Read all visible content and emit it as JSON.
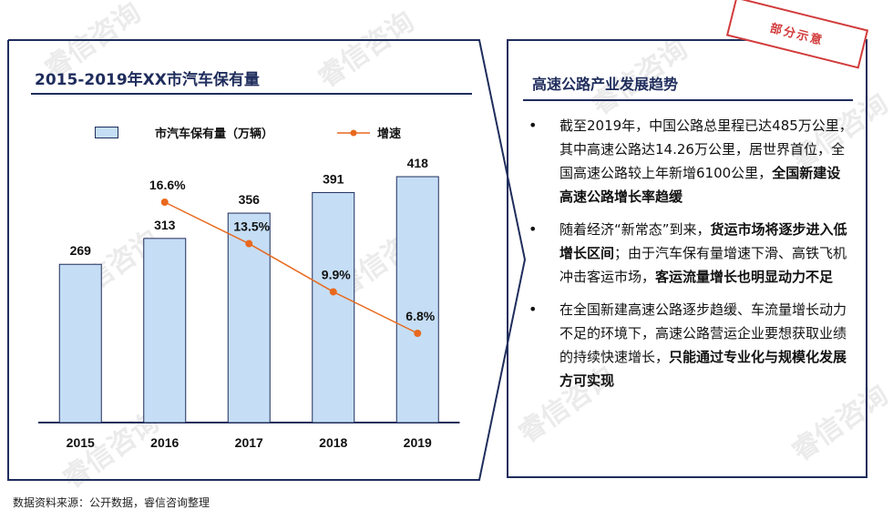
{
  "chart_title": "2015-2019年XX市汽车保有量",
  "legend": {
    "bar": "市汽车保有量（万辆）",
    "line": "增速"
  },
  "chart_data": {
    "type": "bar",
    "title": "2015-2019年XX市汽车保有量",
    "categories": [
      "2015",
      "2016",
      "2017",
      "2018",
      "2019"
    ],
    "series": [
      {
        "name": "市汽车保有量（万辆）",
        "type": "bar",
        "values": [
          269,
          313,
          356,
          391,
          418
        ],
        "labels": [
          "269",
          "313",
          "356",
          "391",
          "418"
        ]
      },
      {
        "name": "增速",
        "type": "line",
        "x": [
          "2016",
          "2017",
          "2018",
          "2019"
        ],
        "values": [
          16.6,
          13.5,
          9.9,
          6.8
        ],
        "labels": [
          "16.6%",
          "13.5%",
          "9.9%",
          "6.8%"
        ]
      }
    ],
    "colors": {
      "bar": "#c5def5",
      "bar_border": "#1f2d5c",
      "line": "#e8691e"
    }
  },
  "right": {
    "title": "高速公路产业发展趋势",
    "bullets": [
      {
        "text": "截至2019年，中国公路总里程已达485万公里，其中高速公路达14.26万公里，居世界首位，全国高速公路较上年新增6100公里，",
        "bold": "全国新建设高速公路增长率趋缓"
      },
      {
        "text": "随着经济“新常态”到来，",
        "bold": "货运市场将逐步进入低增长区间",
        "text2": "；由于汽车保有量增速下滑、高铁飞机冲击客运市场，",
        "bold2": "客运流量增长也明显动力不足"
      },
      {
        "text": "在全国新建高速公路逐步趋缓、车流量增长动力不足的环境下，高速公路营运企业要想获取业绩的持续快速增长，",
        "bold": "只能通过专业化与规模化发展方可实现"
      }
    ]
  },
  "stamp": "部分示意",
  "source": "数据资料来源：公开数据，睿信咨询整理",
  "watermark": "睿信咨询"
}
